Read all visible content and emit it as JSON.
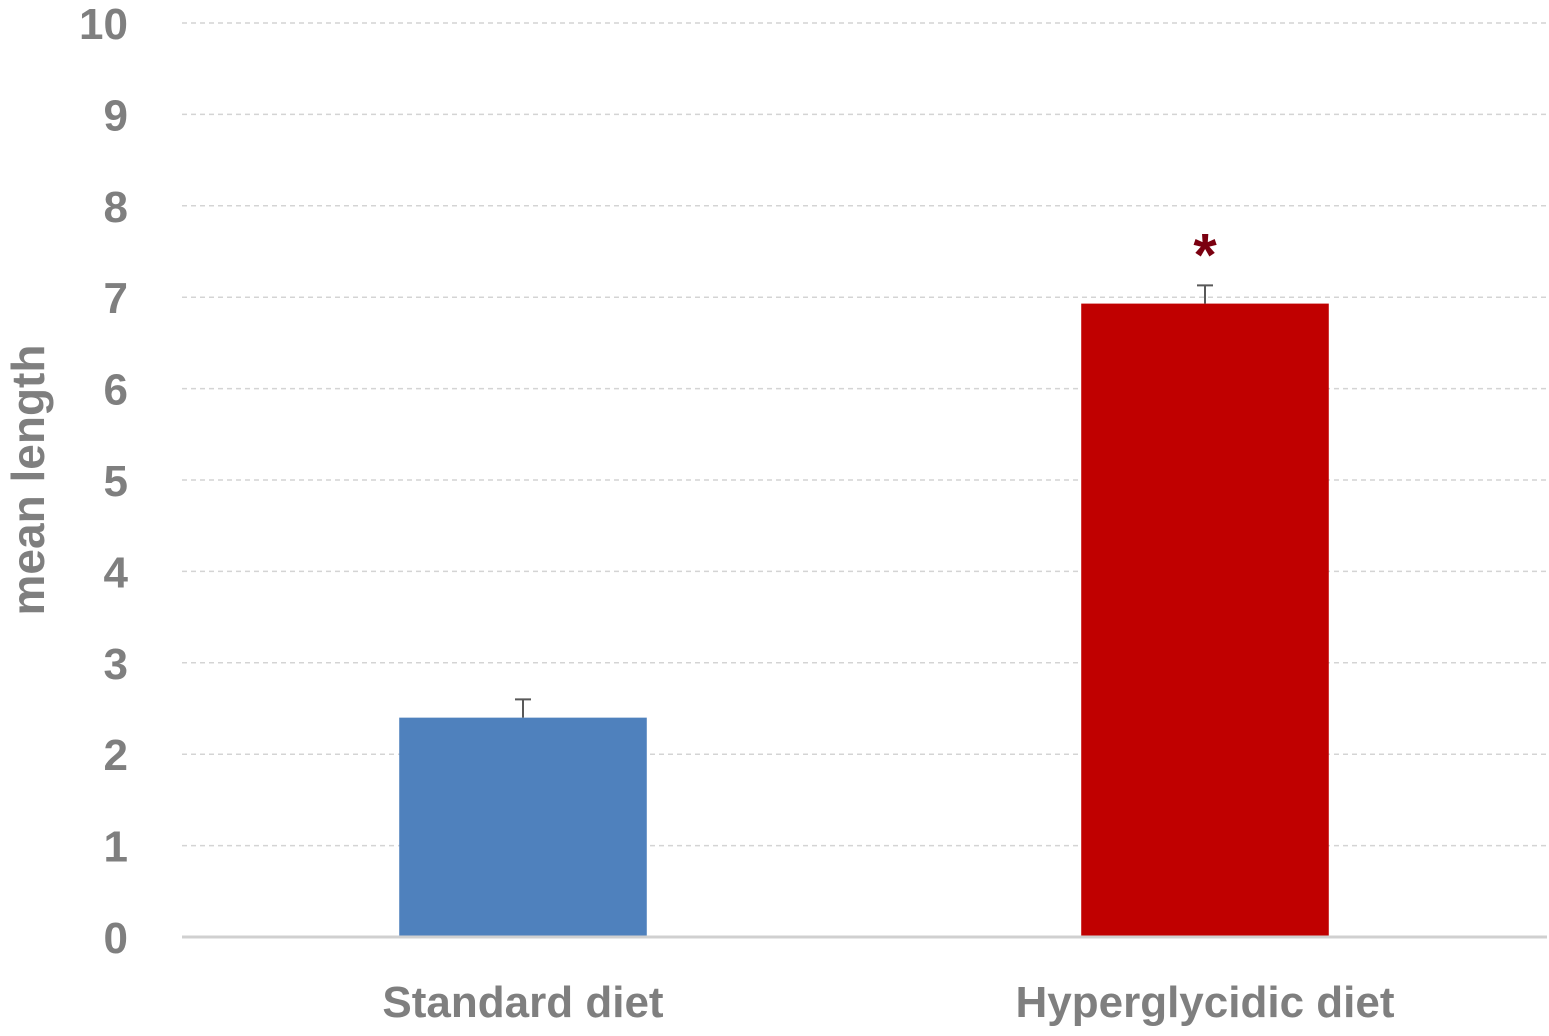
{
  "chart_data": {
    "type": "bar",
    "title": "",
    "xlabel": "",
    "ylabel": "mean length",
    "ylim": [
      0,
      10
    ],
    "yticks": [
      0,
      1,
      2,
      3,
      4,
      5,
      6,
      7,
      8,
      9,
      10
    ],
    "grid": true,
    "legend": "none",
    "categories": [
      "Standard diet",
      "Hyperglycidic diet"
    ],
    "values": [
      2.4,
      6.93
    ],
    "error_upper": [
      0.2,
      0.2
    ],
    "colors": [
      "#4f81bd",
      "#c00000"
    ],
    "annotations": [
      {
        "category": "Hyperglycidic diet",
        "text": "*",
        "color": "#7b0010"
      }
    ]
  }
}
